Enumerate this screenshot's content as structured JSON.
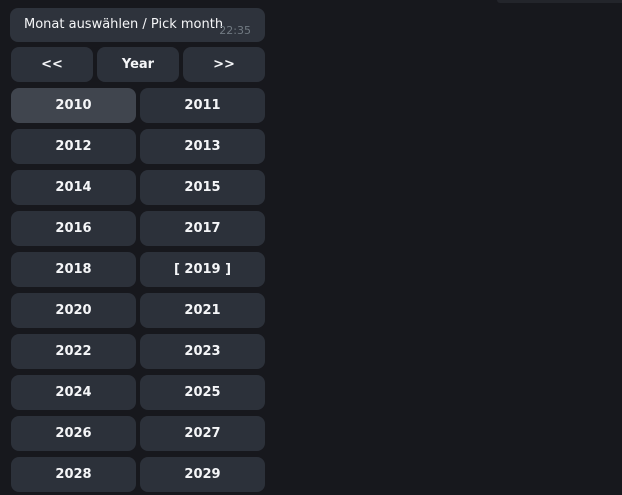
{
  "message": {
    "text": "Monat auswählen / Pick month",
    "time": "22:35"
  },
  "nav": {
    "prev_label": "<<",
    "mode_label": "Year",
    "next_label": ">>"
  },
  "years": [
    {
      "label": "2010",
      "highlighted": true
    },
    {
      "label": "2011",
      "highlighted": false
    },
    {
      "label": "2012",
      "highlighted": false
    },
    {
      "label": "2013",
      "highlighted": false
    },
    {
      "label": "2014",
      "highlighted": false
    },
    {
      "label": "2015",
      "highlighted": false
    },
    {
      "label": "2016",
      "highlighted": false
    },
    {
      "label": "2017",
      "highlighted": false
    },
    {
      "label": "2018",
      "highlighted": false
    },
    {
      "label": "[ 2019 ]",
      "selected": true,
      "highlighted": false
    },
    {
      "label": "2020",
      "highlighted": false
    },
    {
      "label": "2021",
      "highlighted": false
    },
    {
      "label": "2022",
      "highlighted": false
    },
    {
      "label": "2023",
      "highlighted": false
    },
    {
      "label": "2024",
      "highlighted": false
    },
    {
      "label": "2025",
      "highlighted": false
    },
    {
      "label": "2026",
      "highlighted": false
    },
    {
      "label": "2027",
      "highlighted": false
    },
    {
      "label": "2028",
      "highlighted": false
    },
    {
      "label": "2029",
      "highlighted": false
    }
  ],
  "colors": {
    "bg": "#17181d",
    "bubble": "#2e333c",
    "button": "#2c313a",
    "button_highlight": "#40454e",
    "text": "#f5f6f8",
    "timestamp": "#717a82",
    "edge": "#23252b"
  }
}
